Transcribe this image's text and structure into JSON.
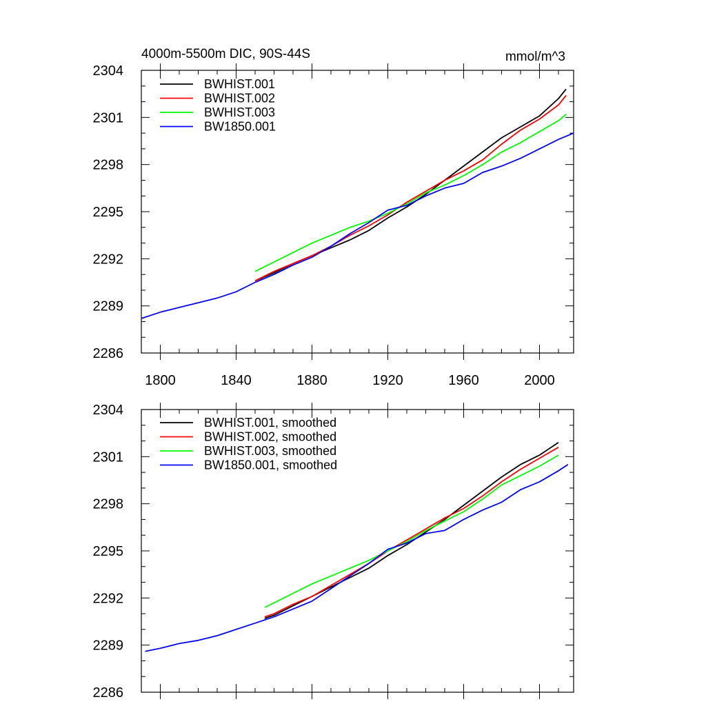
{
  "colors": {
    "BWHIST.001": "#000000",
    "BWHIST.002": "#ff0000",
    "BWHIST.003": "#00ff00",
    "BW1850.001": "#0000ff"
  },
  "chart_data": [
    {
      "type": "line",
      "title": "4000m-5500m DIC, 90S-44S",
      "units": "mmol/m^3",
      "xlim": [
        1790,
        2018
      ],
      "ylim": [
        2286,
        2304
      ],
      "xticks": [
        1800,
        1840,
        1880,
        1920,
        1960,
        2000
      ],
      "xtick_labels": [
        "1800",
        "1840",
        "1880",
        "1920",
        "1960",
        "2000"
      ],
      "yticks": [
        2286,
        2289,
        2292,
        2295,
        2298,
        2301,
        2304
      ],
      "ytick_labels": [
        "2286",
        "2289",
        "2292",
        "2295",
        "2298",
        "2301",
        "2304"
      ],
      "grid": false,
      "legend_position": "top-left",
      "series": [
        {
          "name": "BWHIST.001",
          "color": "#000000",
          "x": [
            1850,
            1860,
            1870,
            1880,
            1890,
            1900,
            1910,
            1920,
            1930,
            1940,
            1950,
            1960,
            1970,
            1980,
            1990,
            2000,
            2010,
            2014
          ],
          "y": [
            2290.6,
            2291.1,
            2291.7,
            2292.2,
            2292.7,
            2293.2,
            2293.8,
            2294.6,
            2295.3,
            2296.1,
            2297.0,
            2297.9,
            2298.8,
            2299.7,
            2300.4,
            2301.1,
            2302.2,
            2302.8
          ]
        },
        {
          "name": "BWHIST.002",
          "color": "#ff0000",
          "x": [
            1850,
            1860,
            1870,
            1880,
            1890,
            1900,
            1910,
            1920,
            1930,
            1940,
            1950,
            1960,
            1970,
            1980,
            1990,
            2000,
            2010,
            2014
          ],
          "y": [
            2290.6,
            2291.2,
            2291.7,
            2292.2,
            2292.8,
            2293.5,
            2294.1,
            2294.8,
            2295.6,
            2296.3,
            2297.0,
            2297.6,
            2298.3,
            2299.3,
            2300.2,
            2300.9,
            2301.8,
            2302.4
          ]
        },
        {
          "name": "BWHIST.003",
          "color": "#00ff00",
          "x": [
            1850,
            1860,
            1870,
            1880,
            1890,
            1900,
            1910,
            1920,
            1930,
            1940,
            1950,
            1960,
            1970,
            1980,
            1990,
            2000,
            2010,
            2014
          ],
          "y": [
            2291.2,
            2291.8,
            2292.4,
            2293.0,
            2293.5,
            2294.0,
            2294.4,
            2294.9,
            2295.5,
            2296.2,
            2296.7,
            2297.3,
            2298.0,
            2298.8,
            2299.4,
            2300.1,
            2300.8,
            2301.2
          ]
        },
        {
          "name": "BW1850.001",
          "color": "#0000ff",
          "x": [
            1790,
            1800,
            1810,
            1820,
            1830,
            1840,
            1850,
            1860,
            1870,
            1880,
            1890,
            1900,
            1910,
            1920,
            1930,
            1940,
            1950,
            1960,
            1970,
            1980,
            1990,
            2000,
            2010,
            2018
          ],
          "y": [
            2288.2,
            2288.6,
            2288.9,
            2289.2,
            2289.5,
            2289.9,
            2290.5,
            2291.0,
            2291.6,
            2292.1,
            2292.8,
            2293.6,
            2294.3,
            2295.1,
            2295.4,
            2296.0,
            2296.5,
            2296.8,
            2297.5,
            2297.9,
            2298.4,
            2299.0,
            2299.6,
            2300.0
          ]
        }
      ]
    },
    {
      "type": "line",
      "xlim": [
        1790,
        2018
      ],
      "ylim": [
        2286,
        2304
      ],
      "xticks": [
        1800,
        1840,
        1880,
        1920,
        1960,
        2000
      ],
      "yticks": [
        2286,
        2289,
        2292,
        2295,
        2298,
        2301,
        2304
      ],
      "ytick_labels": [
        "2286",
        "2289",
        "2292",
        "2295",
        "2298",
        "2301",
        "2304"
      ],
      "grid": false,
      "legend_position": "top-left",
      "series": [
        {
          "name": "BWHIST.001, smoothed",
          "color": "#000000",
          "x": [
            1855,
            1860,
            1870,
            1880,
            1890,
            1900,
            1910,
            1920,
            1930,
            1940,
            1950,
            1960,
            1970,
            1980,
            1990,
            2000,
            2010
          ],
          "y": [
            2290.7,
            2290.9,
            2291.5,
            2292.1,
            2292.7,
            2293.3,
            2293.9,
            2294.7,
            2295.4,
            2296.2,
            2297.0,
            2297.9,
            2298.8,
            2299.7,
            2300.5,
            2301.1,
            2301.9
          ]
        },
        {
          "name": "BWHIST.002, smoothed",
          "color": "#ff0000",
          "x": [
            1855,
            1860,
            1870,
            1880,
            1890,
            1900,
            1910,
            1920,
            1930,
            1940,
            1950,
            1960,
            1970,
            1980,
            1990,
            2000,
            2010
          ],
          "y": [
            2290.8,
            2291.0,
            2291.6,
            2292.1,
            2292.8,
            2293.5,
            2294.2,
            2295.0,
            2295.7,
            2296.4,
            2297.1,
            2297.7,
            2298.5,
            2299.4,
            2300.2,
            2300.9,
            2301.6
          ]
        },
        {
          "name": "BWHIST.003, smoothed",
          "color": "#00ff00",
          "x": [
            1855,
            1860,
            1870,
            1880,
            1890,
            1900,
            1910,
            1920,
            1930,
            1940,
            1950,
            1960,
            1970,
            1980,
            1990,
            2000,
            2010
          ],
          "y": [
            2291.4,
            2291.7,
            2292.3,
            2292.9,
            2293.4,
            2293.9,
            2294.4,
            2295.0,
            2295.6,
            2296.3,
            2296.9,
            2297.5,
            2298.3,
            2299.2,
            2299.8,
            2300.4,
            2301.1
          ]
        },
        {
          "name": "BW1850.001, smoothed",
          "color": "#0000ff",
          "x": [
            1792,
            1800,
            1810,
            1820,
            1830,
            1840,
            1850,
            1855,
            1860,
            1870,
            1880,
            1890,
            1900,
            1910,
            1920,
            1930,
            1940,
            1950,
            1960,
            1970,
            1980,
            1990,
            2000,
            2010,
            2015
          ],
          "y": [
            2288.6,
            2288.8,
            2289.1,
            2289.3,
            2289.6,
            2290.0,
            2290.4,
            2290.6,
            2290.8,
            2291.3,
            2291.8,
            2292.6,
            2293.4,
            2294.2,
            2295.1,
            2295.5,
            2296.1,
            2296.3,
            2297.0,
            2297.6,
            2298.1,
            2298.9,
            2299.4,
            2300.1,
            2300.5
          ]
        }
      ]
    }
  ]
}
